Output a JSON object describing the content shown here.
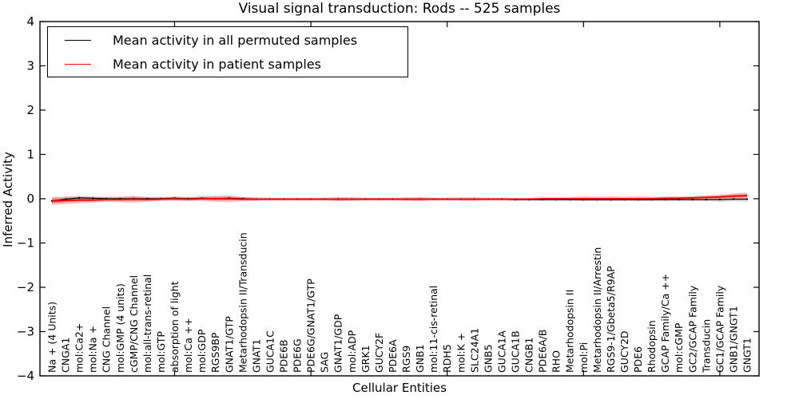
{
  "chart_data": {
    "type": "line",
    "title": "Visual signal transduction: Rods -- 525 samples",
    "xlabel": "Cellular Entities",
    "ylabel": "Inferred Activity",
    "ylim": [
      -4,
      4
    ],
    "ytick_values": [
      4,
      3,
      2,
      1,
      0,
      -1,
      -2,
      -3,
      -4
    ],
    "ytick_labels": [
      "4",
      "3",
      "2",
      "1",
      "0",
      "−1",
      "−2",
      "−3",
      "−4"
    ],
    "xtick_positions": [
      10,
      20,
      30,
      40,
      50
    ],
    "grid": false,
    "legend_position": "upper left",
    "background": "#ffffff",
    "categories": [
      "Na + (4 Units)",
      "CNGA1",
      "mol:Ca2+",
      "mol:Na +",
      "CNG Channel",
      "mol:GMP (4 units)",
      "cGMP/CNG Channel",
      "mol:all-trans-retinal",
      "mol:GTP",
      "absorption of light",
      "mol:Ca ++",
      "mol:GDP",
      "RGS9BP",
      "GNAT1/GTP",
      "Metarhodopsin II/Transducin",
      "GNAT1",
      "GUCA1C",
      "PDE6B",
      "PDE6G",
      "PDE6G/GNAT1/GTP",
      "SAG",
      "GNAT1/GDP",
      "mol:ADP",
      "GRK1",
      "GUCY2F",
      "PDE6A",
      "RGS9",
      "GNB1",
      "mol:11-cis-retinal",
      "RDH5",
      "mol:K +",
      "SLC24A1",
      "GNB5",
      "GUCA1A",
      "GUCA1B",
      "CNGB1",
      "PDE6A/B",
      "RHO",
      "Metarhodopsin II",
      "mol:Pi",
      "Metarhodopsin II/Arrestin",
      "RGS9-1/Gbeta5/R9AP",
      "GUCY2D",
      "PDE6",
      "Rhodopsin",
      "GCAP Family/Ca ++",
      "mol:cGMP",
      "GC2/GCAP Family",
      "Transducin",
      "GC1/GCAP Family",
      "GNB1/GNGT1",
      "GNGT1"
    ],
    "series": [
      {
        "name": "Mean activity in all permuted samples",
        "color": "#000000",
        "band_color": "#999999",
        "values": [
          -0.05,
          -0.01,
          0.02,
          0.01,
          0,
          0,
          0,
          0,
          0,
          0.01,
          0,
          0.01,
          0,
          0.01,
          0,
          -0.01,
          -0.01,
          -0.01,
          -0.01,
          -0.01,
          -0.01,
          -0.01,
          -0.01,
          -0.01,
          -0.01,
          -0.01,
          -0.01,
          -0.01,
          -0.01,
          -0.01,
          -0.01,
          -0.01,
          -0.01,
          -0.01,
          -0.02,
          -0.02,
          -0.02,
          -0.02,
          -0.02,
          -0.02,
          -0.02,
          -0.02,
          -0.02,
          -0.02,
          -0.02,
          -0.02,
          -0.02,
          -0.02,
          -0.02,
          -0.02,
          -0.01,
          -0.01
        ],
        "band": [
          0.07,
          0.06,
          0.05,
          0.05,
          0.05,
          0.04,
          0.04,
          0.04,
          0.04,
          0.04,
          0.04,
          0.04,
          0.04,
          0.04,
          0.04,
          0.03,
          0.03,
          0.03,
          0.03,
          0.03,
          0.03,
          0.03,
          0.03,
          0.03,
          0.03,
          0.03,
          0.03,
          0.03,
          0.03,
          0.03,
          0.03,
          0.03,
          0.03,
          0.03,
          0.03,
          0.03,
          0.03,
          0.03,
          0.03,
          0.03,
          0.03,
          0.03,
          0.03,
          0.03,
          0.04,
          0.04,
          0.04,
          0.04,
          0.04,
          0.05,
          0.05,
          0.06
        ]
      },
      {
        "name": "Mean activity in patient samples",
        "color": "#ff0000",
        "band_color": "#ff0000",
        "values": [
          -0.05,
          -0.04,
          -0.03,
          -0.03,
          -0.02,
          -0.02,
          -0.01,
          -0.02,
          -0.01,
          0,
          -0.01,
          0,
          0,
          0,
          -0.01,
          -0.01,
          -0.01,
          -0.01,
          -0.01,
          -0.01,
          -0.01,
          -0.01,
          -0.01,
          -0.01,
          -0.01,
          -0.01,
          -0.01,
          -0.01,
          -0.01,
          -0.01,
          -0.01,
          -0.01,
          -0.01,
          -0.01,
          -0.01,
          -0.01,
          0,
          0,
          0,
          0,
          0,
          0,
          0,
          0,
          0,
          0.01,
          0.01,
          0.02,
          0.03,
          0.04,
          0.06,
          0.07
        ],
        "band": [
          0.09,
          0.08,
          0.07,
          0.06,
          0.05,
          0.06,
          0.08,
          0.05,
          0.04,
          0.05,
          0.04,
          0.05,
          0.07,
          0.08,
          0.05,
          0.04,
          0.03,
          0.03,
          0.03,
          0.03,
          0.03,
          0.05,
          0.04,
          0.03,
          0.03,
          0.03,
          0.04,
          0.05,
          0.03,
          0.03,
          0.04,
          0.04,
          0.03,
          0.03,
          0.03,
          0.03,
          0.03,
          0.03,
          0.03,
          0.05,
          0.04,
          0.05,
          0.04,
          0.05,
          0.04,
          0.04,
          0.04,
          0.04,
          0.05,
          0.05,
          0.06,
          0.07
        ]
      }
    ]
  }
}
